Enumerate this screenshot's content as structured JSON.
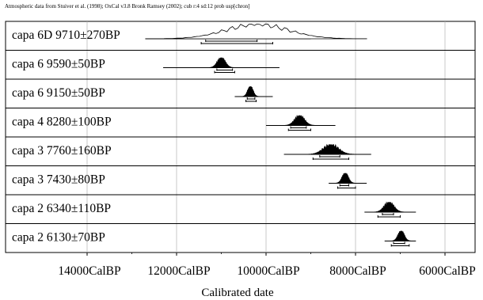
{
  "header": "Atmospheric data from Stuiver et al. (1998); OxCal v3.8 Bronk Ramsey (2002); cub r:4 sd:12 prob usp[chron]",
  "chart_data": {
    "type": "calibration-multiplot",
    "x_axis": {
      "label": "Calibrated date",
      "unit": "CalBP",
      "range_calbp": [
        15000,
        5850
      ],
      "reversed": true,
      "ticks": [
        {
          "value": 14000,
          "label": "14000CalBP"
        },
        {
          "value": 12000,
          "label": "12000CalBP"
        },
        {
          "value": 10000,
          "label": "10000CalBP"
        },
        {
          "value": 8000,
          "label": "8000CalBP"
        },
        {
          "value": 6000,
          "label": "6000CalBP"
        }
      ]
    },
    "grid": true,
    "samples": [
      {
        "label": "capa 6D  9710±270BP",
        "peak_calbp": 10200,
        "spread_calbp": 700,
        "range_calbp": [
          12700,
          9000
        ],
        "sigma1_calbp": [
          11350,
          10200
        ],
        "sigma2_calbp": [
          11450,
          9850
        ],
        "filled": false
      },
      {
        "label": "capa 6  9590±50BP",
        "peak_calbp": 11000,
        "spread_calbp": 90,
        "range_calbp": [
          12300,
          9700
        ],
        "sigma1_calbp": [
          11100,
          10750
        ],
        "sigma2_calbp": [
          11150,
          10700
        ],
        "filled": true
      },
      {
        "label": "capa 6  9150±50BP",
        "peak_calbp": 10350,
        "spread_calbp": 60,
        "range_calbp": [
          10700,
          9850
        ],
        "sigma1_calbp": [
          10420,
          10250
        ],
        "sigma2_calbp": [
          10450,
          10220
        ],
        "filled": true
      },
      {
        "label": "capa 4  8280±100BP",
        "peak_calbp": 9250,
        "spread_calbp": 110,
        "range_calbp": [
          10000,
          8450
        ],
        "sigma1_calbp": [
          9450,
          9100
        ],
        "sigma2_calbp": [
          9500,
          9000
        ],
        "filled": true
      },
      {
        "label": "capa 3  7760±160BP",
        "peak_calbp": 8550,
        "spread_calbp": 170,
        "range_calbp": [
          9600,
          7650
        ],
        "sigma1_calbp": [
          8800,
          8350
        ],
        "sigma2_calbp": [
          8950,
          8150
        ],
        "filled": true
      },
      {
        "label": "capa 3  7430±80BP",
        "peak_calbp": 8230,
        "spread_calbp": 70,
        "range_calbp": [
          8600,
          7750
        ],
        "sigma1_calbp": [
          8350,
          8150
        ],
        "sigma2_calbp": [
          8400,
          8000
        ],
        "filled": true
      },
      {
        "label": "capa 2  6340±110BP",
        "peak_calbp": 7250,
        "spread_calbp": 110,
        "range_calbp": [
          7800,
          6650
        ],
        "sigma1_calbp": [
          7400,
          7150
        ],
        "sigma2_calbp": [
          7500,
          7000
        ],
        "filled": true
      },
      {
        "label": "capa 2  6130±70BP",
        "peak_calbp": 6980,
        "spread_calbp": 70,
        "range_calbp": [
          7350,
          6650
        ],
        "sigma1_calbp": [
          7150,
          6900
        ],
        "sigma2_calbp": [
          7200,
          6800
        ],
        "filled": true
      }
    ]
  }
}
